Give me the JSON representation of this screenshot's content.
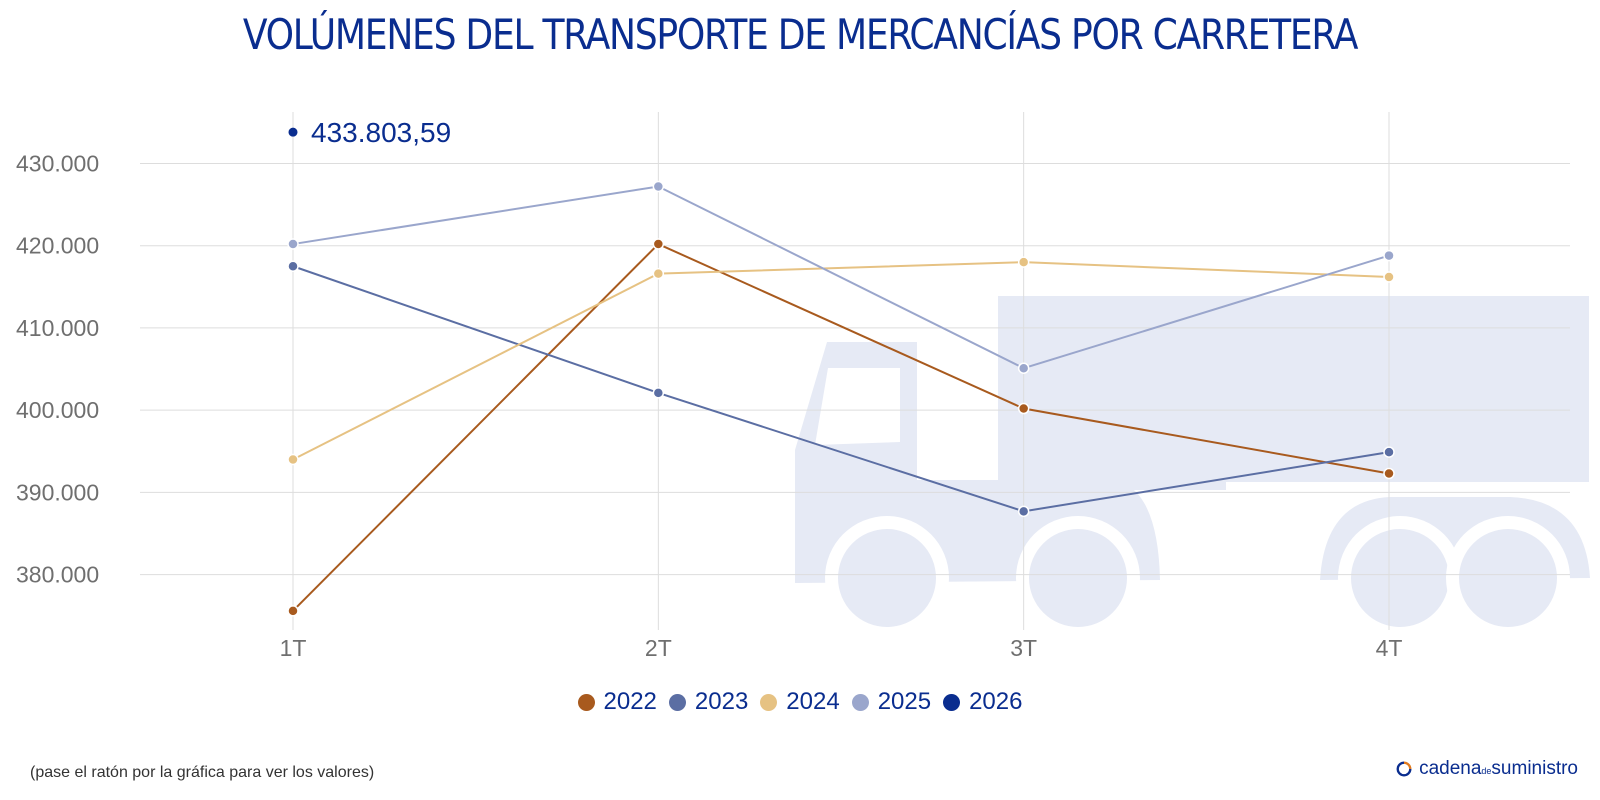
{
  "chart_data": {
    "type": "line",
    "title": "VOLÚMENES DEL TRANSPORTE DE MERCANCÍAS POR CARRETERA",
    "categories": [
      "1T",
      "2T",
      "3T",
      "4T"
    ],
    "y_ticks": [
      380000,
      390000,
      400000,
      410000,
      420000,
      430000
    ],
    "y_tick_labels": [
      "380.000",
      "390.000",
      "400.000",
      "410.000",
      "420.000",
      "430.000"
    ],
    "ylim": [
      374000,
      436500
    ],
    "grid": true,
    "legend_position": "bottom-center",
    "series": [
      {
        "name": "2022",
        "color": "#a85a1e",
        "values": [
          375600,
          420200,
          400200,
          392300
        ]
      },
      {
        "name": "2023",
        "color": "#5b6ea3",
        "values": [
          417500,
          402100,
          387700,
          394900
        ]
      },
      {
        "name": "2024",
        "color": "#e6c283",
        "values": [
          394000,
          416600,
          418000,
          416200
        ]
      },
      {
        "name": "2025",
        "color": "#9aa6cc",
        "values": [
          420200,
          427200,
          405100,
          418800
        ]
      },
      {
        "name": "2026",
        "color": "#0a2d8f",
        "values": [
          433803.59,
          null,
          null,
          null
        ]
      }
    ],
    "annotation": {
      "text": "433.803,59",
      "series": "2026",
      "category": "1T"
    }
  },
  "footer": {
    "note": "(pase el ratón por la gráfica para ver los valores)",
    "brand_cadena": "cadena",
    "brand_de": "de",
    "brand_suministro": "suministro"
  },
  "colors": {
    "title": "#0a2d8f",
    "background_truck": "#e6eaf5",
    "grid": "#dddddd"
  },
  "icons": [
    "truck-background-icon",
    "brand-logo-icon"
  ]
}
